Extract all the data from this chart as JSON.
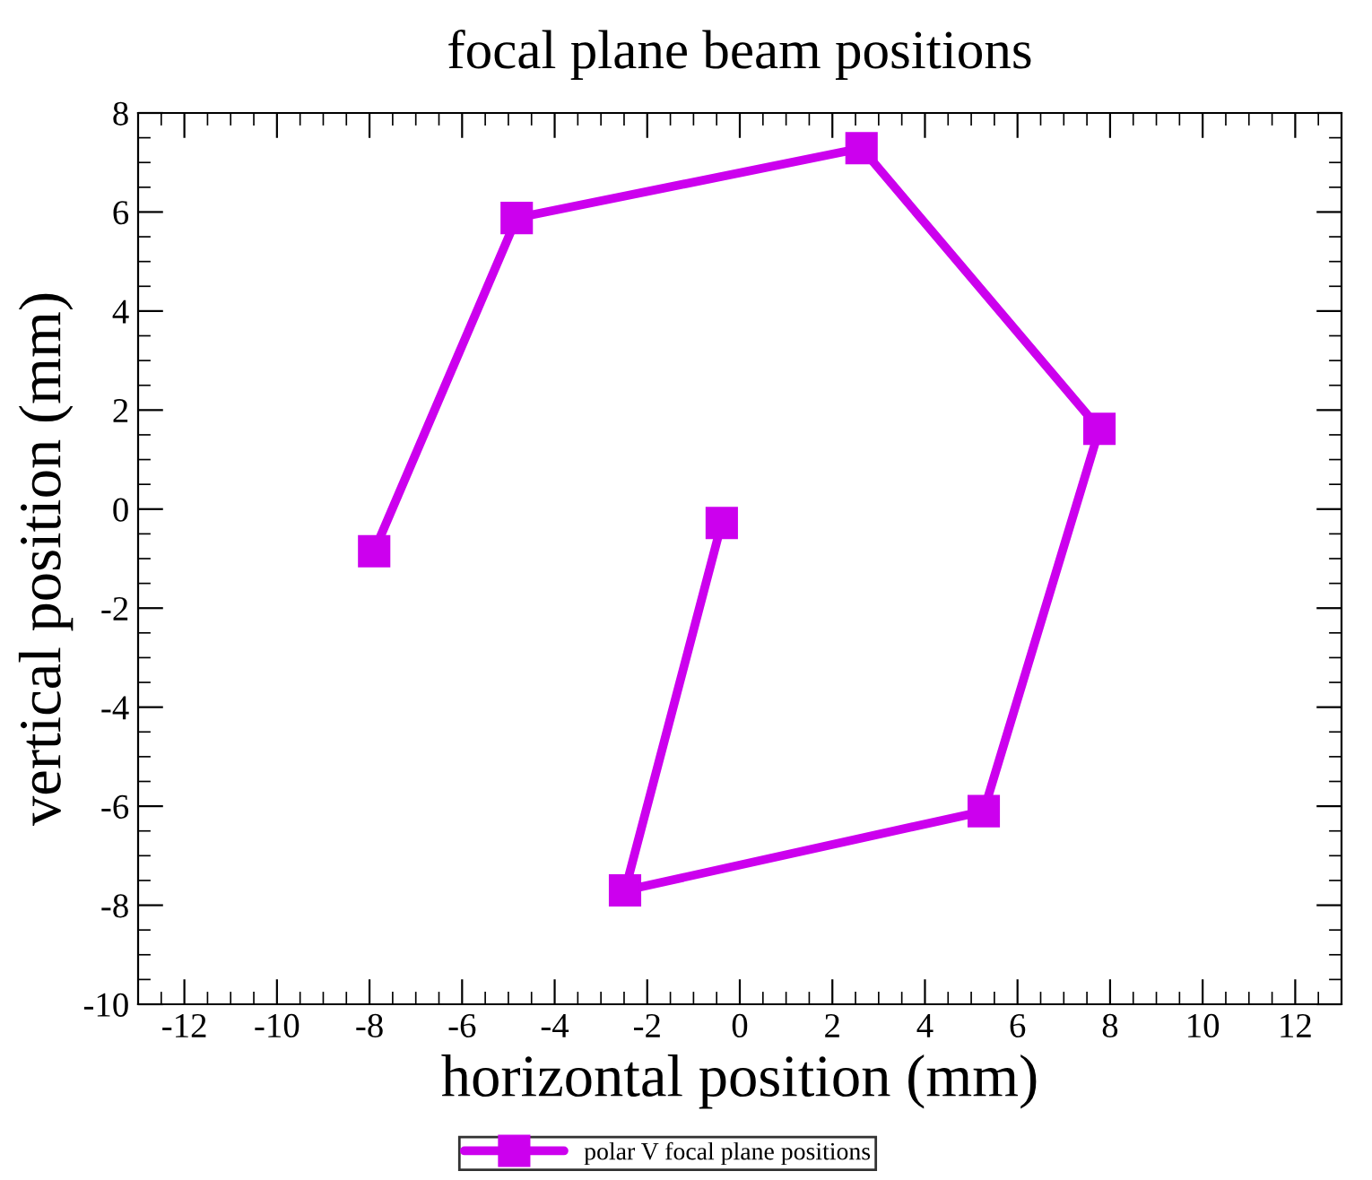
{
  "chart_data": {
    "type": "line",
    "title": "focal plane beam positions",
    "xlabel": "horizontal position (mm)",
    "ylabel": "vertical position (mm)",
    "x": [
      -7.9,
      -4.82,
      2.63,
      7.77,
      5.27,
      -2.48,
      -0.39
    ],
    "series": [
      {
        "name": "polar V focal plane positions",
        "color": "#cc00ee",
        "values": [
          -0.85,
          5.88,
          7.29,
          1.62,
          -6.1,
          -7.7,
          -0.28
        ]
      }
    ],
    "xlim": [
      -13,
      13
    ],
    "ylim": [
      -10,
      8
    ],
    "xticks": [
      -12,
      -10,
      -8,
      -6,
      -4,
      -2,
      0,
      2,
      4,
      6,
      8,
      10,
      12
    ],
    "yticks": [
      -10,
      -8,
      -6,
      -4,
      -2,
      0,
      2,
      4,
      6,
      8
    ],
    "marker": "square",
    "line_style": "solid",
    "grid": false,
    "legend": "bottom"
  }
}
